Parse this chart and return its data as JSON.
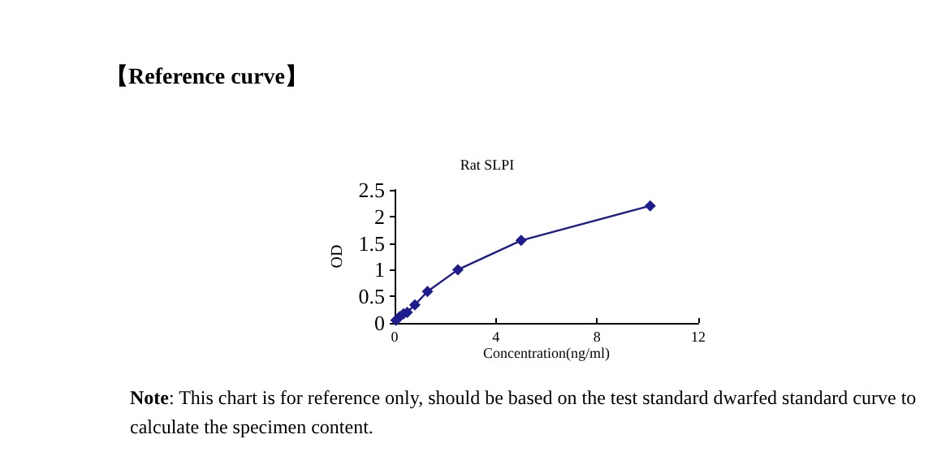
{
  "chart_data": {
    "type": "line",
    "title": "【Reference curve】",
    "subtitle": "Rat SLPI",
    "xlabel": "Concentration(ng/ml)",
    "ylabel": "OD",
    "x": [
      0.05,
      0.2,
      0.35,
      0.5,
      0.8,
      1.3,
      2.5,
      5,
      10.1
    ],
    "series": [
      {
        "color": "#1c1c8e",
        "values": [
          0.05,
          0.12,
          0.17,
          0.2,
          0.34,
          0.59,
          1.0,
          1.55,
          2.2
        ]
      }
    ],
    "xlim": [
      0,
      12
    ],
    "xticks": [
      0,
      4,
      8,
      12
    ],
    "ylim": [
      0,
      2.5
    ],
    "yticks": [
      0,
      0.5,
      1,
      1.5,
      2,
      2.5
    ],
    "grid": false,
    "marker": "diamond",
    "line_style": "solid",
    "annotations": [
      "Note: This chart is for reference only, should be based on the test standard dwarfed standard curve to calculate the specimen content."
    ]
  }
}
